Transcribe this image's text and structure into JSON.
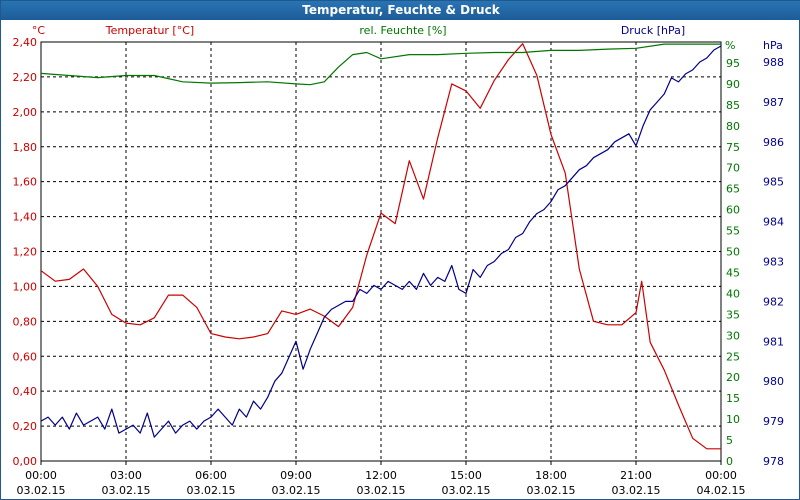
{
  "title": "Temperatur, Feuchte & Druck",
  "colors": {
    "temperature": "#cc0000",
    "humidity": "#007700",
    "pressure": "#00008b",
    "grid": "#000000",
    "titlebar": "#1c5c98"
  },
  "chart_data": {
    "type": "line",
    "title": "Temperatur, Feuchte & Druck",
    "grid": true,
    "legend": "none",
    "x_ticks": [
      {
        "time": "00:00",
        "date": "03.02.15"
      },
      {
        "time": "03:00",
        "date": "03.02.15"
      },
      {
        "time": "06:00",
        "date": "03.02.15"
      },
      {
        "time": "09:00",
        "date": "03.02.15"
      },
      {
        "time": "12:00",
        "date": "03.02.15"
      },
      {
        "time": "15:00",
        "date": "03.02.15"
      },
      {
        "time": "18:00",
        "date": "03.02.15"
      },
      {
        "time": "21:00",
        "date": "03.02.15"
      },
      {
        "time": "00:00",
        "date": "04.02.15"
      }
    ],
    "xlim": [
      0,
      24
    ],
    "axes": {
      "temperature": {
        "label": "Temperatur [°C]",
        "unit": "°C",
        "ylim": [
          0,
          2.4
        ],
        "ticks": [
          "0,00",
          "0,20",
          "0,40",
          "0,60",
          "0,80",
          "1,00",
          "1,20",
          "1,40",
          "1,60",
          "1,80",
          "2,00",
          "2,20",
          "2,40"
        ]
      },
      "humidity": {
        "label": "rel. Feuchte [%]",
        "unit": "%",
        "ylim": [
          0,
          100
        ],
        "ticks": [
          "0",
          "5",
          "10",
          "15",
          "20",
          "25",
          "30",
          "35",
          "40",
          "45",
          "50",
          "55",
          "60",
          "65",
          "70",
          "75",
          "80",
          "85",
          "90",
          "95"
        ]
      },
      "pressure": {
        "label": "Druck [hPa]",
        "unit": "hPa",
        "ylim": [
          978,
          988.5
        ],
        "ticks": [
          "978",
          "979",
          "980",
          "981",
          "982",
          "983",
          "984",
          "985",
          "986",
          "987",
          "988"
        ]
      }
    },
    "series": [
      {
        "name": "Temperatur [°C]",
        "axis": "temperature",
        "x": [
          0,
          0.5,
          1,
          1.5,
          2,
          2.5,
          3,
          3.5,
          4,
          4.5,
          5,
          5.5,
          6,
          6.5,
          7,
          7.5,
          8,
          8.5,
          9,
          9.5,
          10,
          10.5,
          11,
          11.5,
          12,
          12.5,
          13,
          13.5,
          14,
          14.5,
          15,
          15.5,
          16,
          16.5,
          17,
          17.5,
          18,
          18.5,
          19,
          19.5,
          20,
          20.5,
          21,
          21.2,
          21.5,
          22,
          22.5,
          23,
          23.5,
          24
        ],
        "values": [
          1.09,
          1.03,
          1.04,
          1.1,
          1.0,
          0.84,
          0.79,
          0.78,
          0.82,
          0.95,
          0.95,
          0.88,
          0.73,
          0.71,
          0.7,
          0.71,
          0.73,
          0.86,
          0.84,
          0.87,
          0.83,
          0.77,
          0.88,
          1.18,
          1.42,
          1.36,
          1.72,
          1.5,
          1.85,
          2.16,
          2.12,
          2.02,
          2.18,
          2.3,
          2.39,
          2.21,
          1.87,
          1.65,
          1.1,
          0.8,
          0.78,
          0.78,
          0.85,
          1.03,
          0.68,
          0.52,
          0.32,
          0.13,
          0.07,
          0.07
        ]
      },
      {
        "name": "rel. Feuchte [%]",
        "axis": "humidity",
        "x": [
          0,
          1,
          2,
          3,
          4,
          5,
          6,
          7,
          8,
          9,
          9.5,
          10,
          10.5,
          11,
          11.5,
          12,
          13,
          14,
          15,
          16,
          17,
          18,
          19,
          20,
          21,
          22,
          23,
          24
        ],
        "values": [
          92.5,
          92,
          91.5,
          92,
          92,
          90.5,
          90.2,
          90.3,
          90.5,
          90.0,
          89.8,
          90.5,
          94,
          97,
          97.5,
          96,
          97,
          97,
          97.3,
          97.5,
          97.5,
          98,
          98,
          98.3,
          98.5,
          99.5,
          99.5,
          99.5
        ]
      },
      {
        "name": "Druck [hPa]",
        "axis": "pressure",
        "x": [
          0,
          0.25,
          0.5,
          0.75,
          1,
          1.25,
          1.5,
          1.75,
          2,
          2.25,
          2.5,
          2.75,
          3,
          3.25,
          3.5,
          3.75,
          4,
          4.25,
          4.5,
          4.75,
          5,
          5.25,
          5.5,
          5.75,
          6,
          6.25,
          6.5,
          6.75,
          7,
          7.25,
          7.5,
          7.75,
          8,
          8.25,
          8.5,
          8.75,
          9,
          9.25,
          9.5,
          9.75,
          10,
          10.25,
          10.5,
          10.75,
          11,
          11.25,
          11.5,
          11.75,
          12,
          12.25,
          12.5,
          12.75,
          13,
          13.25,
          13.5,
          13.75,
          14,
          14.25,
          14.5,
          14.75,
          15,
          15.25,
          15.5,
          15.75,
          16,
          16.25,
          16.5,
          16.75,
          17,
          17.25,
          17.5,
          17.75,
          18,
          18.25,
          18.5,
          18.75,
          19,
          19.25,
          19.5,
          19.75,
          20,
          20.25,
          20.5,
          20.75,
          21,
          21.25,
          21.5,
          21.75,
          22,
          22.25,
          22.5,
          22.75,
          23,
          23.25,
          23.5,
          23.75,
          24
        ],
        "values": [
          979.0,
          979.1,
          978.9,
          979.1,
          978.8,
          979.2,
          978.9,
          979.0,
          979.1,
          978.8,
          979.3,
          978.7,
          978.8,
          978.9,
          978.7,
          979.2,
          978.6,
          978.8,
          979.0,
          978.7,
          978.9,
          979.0,
          978.8,
          979.0,
          979.1,
          979.3,
          979.1,
          978.9,
          979.3,
          979.1,
          979.5,
          979.3,
          979.6,
          980.0,
          980.2,
          980.6,
          981.0,
          980.3,
          980.8,
          981.2,
          981.6,
          981.8,
          981.9,
          982.0,
          982.0,
          982.3,
          982.2,
          982.4,
          982.3,
          982.5,
          982.4,
          982.3,
          982.5,
          982.3,
          982.7,
          982.4,
          982.6,
          982.5,
          982.9,
          982.3,
          982.2,
          982.8,
          982.6,
          982.9,
          983.0,
          983.2,
          983.3,
          983.6,
          983.7,
          984.0,
          984.2,
          984.3,
          984.5,
          984.8,
          984.9,
          985.1,
          985.3,
          985.4,
          985.6,
          985.7,
          985.8,
          986.0,
          986.1,
          986.2,
          985.9,
          986.4,
          986.8,
          987.0,
          987.2,
          987.6,
          987.5,
          987.7,
          987.8,
          988.0,
          988.1,
          988.3,
          988.4
        ]
      }
    ]
  }
}
